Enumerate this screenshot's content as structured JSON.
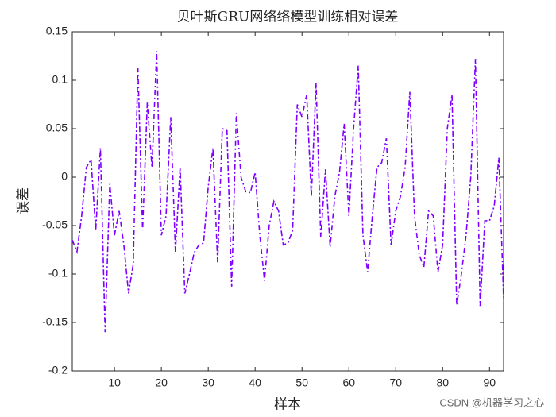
{
  "chart_data": {
    "type": "line",
    "title": "贝叶斯GRU网络络模型训练相对误差",
    "x_label": "样本",
    "y_label": "误差",
    "annotation": "CSDN @机器学习之心",
    "x": [
      1,
      2,
      3,
      4,
      5,
      6,
      7,
      8,
      9,
      10,
      11,
      12,
      13,
      14,
      15,
      16,
      17,
      18,
      19,
      20,
      21,
      22,
      23,
      24,
      25,
      26,
      27,
      28,
      29,
      30,
      31,
      32,
      33,
      34,
      35,
      36,
      37,
      38,
      39,
      40,
      41,
      42,
      43,
      44,
      45,
      46,
      47,
      48,
      49,
      50,
      51,
      52,
      53,
      54,
      55,
      56,
      57,
      58,
      59,
      60,
      61,
      62,
      63,
      64,
      65,
      66,
      67,
      68,
      69,
      70,
      71,
      72,
      73,
      74,
      75,
      76,
      77,
      78,
      79,
      80,
      81,
      82,
      83,
      84,
      85,
      86,
      87,
      88,
      89,
      90,
      91,
      92,
      93
    ],
    "series": [
      {
        "color": "#7f00ff",
        "values": [
          -0.065,
          -0.077,
          -0.04,
          0.01,
          0.018,
          -0.055,
          0.03,
          -0.16,
          -0.007,
          -0.06,
          -0.035,
          -0.07,
          -0.12,
          -0.09,
          0.113,
          -0.055,
          0.077,
          0.01,
          0.13,
          -0.06,
          -0.04,
          0.062,
          -0.077,
          0.01,
          -0.12,
          -0.1,
          -0.078,
          -0.07,
          -0.068,
          -0.01,
          0.03,
          -0.088,
          0.05,
          0.048,
          -0.113,
          0.066,
          0.0,
          -0.015,
          -0.016,
          0.005,
          -0.06,
          -0.107,
          -0.05,
          -0.025,
          -0.035,
          -0.07,
          -0.068,
          -0.055,
          0.075,
          0.062,
          0.085,
          -0.02,
          0.097,
          -0.062,
          0.008,
          -0.072,
          -0.02,
          0.005,
          0.055,
          -0.04,
          0.05,
          0.115,
          -0.06,
          -0.098,
          -0.04,
          0.01,
          0.015,
          0.04,
          -0.07,
          -0.035,
          -0.02,
          0.01,
          0.088,
          -0.04,
          -0.08,
          -0.093,
          -0.035,
          -0.04,
          -0.098,
          -0.07,
          0.05,
          0.085,
          -0.132,
          -0.1,
          -0.06,
          0.0,
          0.122,
          -0.133,
          -0.045,
          -0.045,
          -0.03,
          0.02,
          -0.125
        ]
      }
    ],
    "xlim": [
      1,
      93
    ],
    "xticks": [
      10,
      20,
      30,
      40,
      50,
      60,
      70,
      80,
      90
    ],
    "ylim": [
      -0.2,
      0.15
    ],
    "yticks": [
      -0.2,
      -0.15,
      -0.1,
      -0.05,
      0,
      0.05,
      0.1,
      0.15
    ]
  }
}
